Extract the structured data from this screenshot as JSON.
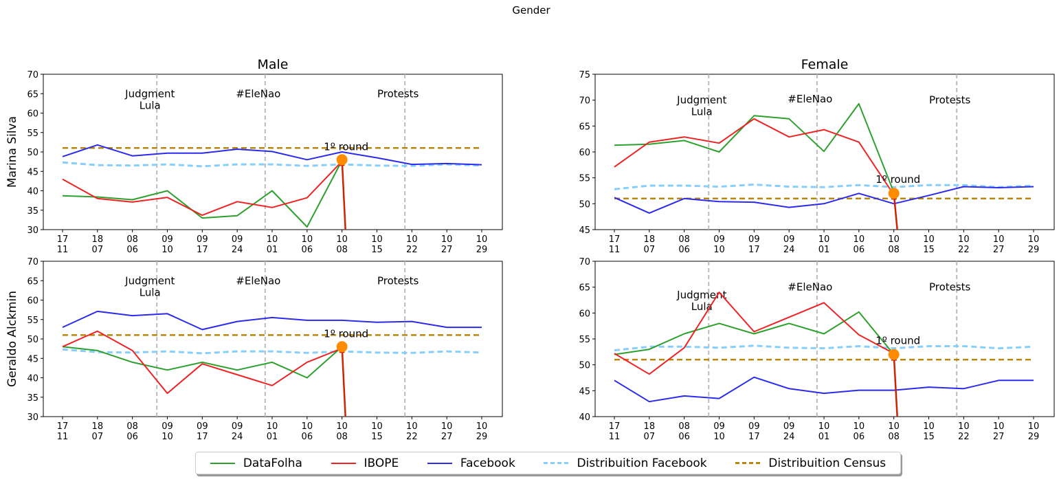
{
  "figure": {
    "suptitle": "Gender"
  },
  "colors": {
    "datafolha": "#2ca02c",
    "ibope": "#ee2222",
    "facebook": "#2a2aee",
    "dist_facebook": "#87cefa",
    "dist_census": "#b8860b",
    "marker": "#ff8c00",
    "arrow": "#cc2200",
    "vline": "#bbbbbb"
  },
  "legend": {
    "datafolha": "DataFolha",
    "ibope": "IBOPE",
    "facebook": "Facebook",
    "dist_facebook": "Distribuition Facebook",
    "dist_census": "Distribuition Census"
  },
  "chart_data": {
    "type": "line",
    "x_labels": [
      [
        "17",
        "11"
      ],
      [
        "18",
        "07"
      ],
      [
        "08",
        "06"
      ],
      [
        "09",
        "10"
      ],
      [
        "09",
        "17"
      ],
      [
        "09",
        "24"
      ],
      [
        "10",
        "01"
      ],
      [
        "10",
        "06"
      ],
      [
        "10",
        "08"
      ],
      [
        "10",
        "15"
      ],
      [
        "10",
        "22"
      ],
      [
        "10",
        "27"
      ],
      [
        "10",
        "29"
      ]
    ],
    "panels": [
      {
        "id": "marina-male",
        "col_title": "Male",
        "row_label": "Marina Silva",
        "ylim": [
          30,
          70
        ],
        "yticks": [
          30,
          35,
          40,
          45,
          50,
          55,
          60,
          65,
          70
        ],
        "events": [
          {
            "x": 2.7,
            "lines": [
              "Judgment",
              "Lula"
            ],
            "label_y": 65
          },
          {
            "x": 5.8,
            "lines": [
              "#EleNao"
            ],
            "label_y": 65
          },
          {
            "x": 9.8,
            "lines": [
              "Protests"
            ],
            "label_y": 65
          }
        ],
        "round": {
          "label": "1º round",
          "x": 8,
          "marker_y": 48,
          "label_y": 51.3
        },
        "series": {
          "datafolha": [
            [
              0,
              38.7
            ],
            [
              1,
              38.4
            ],
            [
              2,
              37.7
            ],
            [
              3,
              40
            ],
            [
              4,
              33
            ],
            [
              5,
              33.6
            ],
            [
              6,
              40
            ],
            [
              7,
              30.7
            ],
            [
              8,
              47.8
            ]
          ],
          "ibope": [
            [
              0,
              43
            ],
            [
              1,
              38
            ],
            [
              2,
              37.1
            ],
            [
              3,
              38.3
            ],
            [
              4,
              33.7
            ],
            [
              5,
              37.2
            ],
            [
              6,
              35.7
            ],
            [
              7,
              38.2
            ],
            [
              8,
              47.6
            ]
          ],
          "facebook": [
            [
              0,
              48.8
            ],
            [
              1,
              51.8
            ],
            [
              2,
              49
            ],
            [
              3,
              49.7
            ],
            [
              4,
              49.7
            ],
            [
              5,
              50.7
            ],
            [
              6,
              50.1
            ],
            [
              7,
              48
            ],
            [
              8,
              50
            ],
            [
              9,
              48.5
            ],
            [
              10,
              46.8
            ],
            [
              11,
              47
            ],
            [
              12,
              46.7
            ]
          ],
          "dist_facebook": [
            [
              0,
              47.3
            ],
            [
              1,
              46.6
            ],
            [
              2,
              46.5
            ],
            [
              3,
              46.8
            ],
            [
              4,
              46.3
            ],
            [
              5,
              46.8
            ],
            [
              6,
              46.8
            ],
            [
              7,
              46.4
            ],
            [
              8,
              46.8
            ],
            [
              9,
              46.5
            ],
            [
              10,
              46.4
            ],
            [
              11,
              46.8
            ],
            [
              12,
              46.5
            ]
          ],
          "dist_census": [
            [
              0,
              51
            ],
            [
              12,
              51
            ]
          ]
        }
      },
      {
        "id": "marina-female",
        "col_title": "Female",
        "row_label": "",
        "ylim": [
          45,
          75
        ],
        "yticks": [
          45,
          50,
          55,
          60,
          65,
          70,
          75
        ],
        "events": [
          {
            "x": 2.7,
            "lines": [
              "Judgment",
              "Lula"
            ],
            "label_y": 70
          },
          {
            "x": 5.8,
            "lines": [
              "#EleNao"
            ],
            "label_y": 70.2
          },
          {
            "x": 9.8,
            "lines": [
              "Protests"
            ],
            "label_y": 70
          }
        ],
        "round": {
          "label": "1º round",
          "x": 8,
          "marker_y": 52,
          "label_y": 54.7
        },
        "series": {
          "datafolha": [
            [
              0,
              61.3
            ],
            [
              1,
              61.5
            ],
            [
              2,
              62.2
            ],
            [
              3,
              60
            ],
            [
              4,
              67
            ],
            [
              5,
              66.4
            ],
            [
              6,
              60.1
            ],
            [
              7,
              69.3
            ],
            [
              8,
              52.2
            ]
          ],
          "ibope": [
            [
              0,
              57.1
            ],
            [
              1,
              61.9
            ],
            [
              2,
              62.9
            ],
            [
              3,
              61.7
            ],
            [
              4,
              66.4
            ],
            [
              5,
              62.9
            ],
            [
              6,
              64.3
            ],
            [
              7,
              61.9
            ],
            [
              8,
              51.7
            ]
          ],
          "facebook": [
            [
              0,
              51.2
            ],
            [
              1,
              48.2
            ],
            [
              2,
              51
            ],
            [
              3,
              50.4
            ],
            [
              4,
              50.3
            ],
            [
              5,
              49.3
            ],
            [
              6,
              50
            ],
            [
              7,
              52
            ],
            [
              8,
              50
            ],
            [
              9,
              51.6
            ],
            [
              10,
              53.3
            ],
            [
              11,
              53.1
            ],
            [
              12,
              53.3
            ]
          ],
          "dist_facebook": [
            [
              0,
              52.8
            ],
            [
              1,
              53.5
            ],
            [
              2,
              53.5
            ],
            [
              3,
              53.3
            ],
            [
              4,
              53.7
            ],
            [
              5,
              53.3
            ],
            [
              6,
              53.2
            ],
            [
              7,
              53.6
            ],
            [
              8,
              53.2
            ],
            [
              9,
              53.6
            ],
            [
              10,
              53.6
            ],
            [
              11,
              53.2
            ],
            [
              12,
              53.5
            ]
          ],
          "dist_census": [
            [
              0,
              51
            ],
            [
              12,
              51
            ]
          ]
        }
      },
      {
        "id": "alckmin-male",
        "col_title": "",
        "row_label": "Geraldo Alckmin",
        "ylim": [
          30,
          70
        ],
        "yticks": [
          30,
          35,
          40,
          45,
          50,
          55,
          60,
          65,
          70
        ],
        "events": [
          {
            "x": 2.7,
            "lines": [
              "Judgment",
              "Lula"
            ],
            "label_y": 65
          },
          {
            "x": 5.8,
            "lines": [
              "#EleNao"
            ],
            "label_y": 65
          },
          {
            "x": 9.8,
            "lines": [
              "Protests"
            ],
            "label_y": 65
          }
        ],
        "round": {
          "label": "1º round",
          "x": 8,
          "marker_y": 48,
          "label_y": 51.3
        },
        "series": {
          "datafolha": [
            [
              0,
              48
            ],
            [
              1,
              47
            ],
            [
              2,
              44
            ],
            [
              3,
              42
            ],
            [
              4,
              44
            ],
            [
              5,
              42
            ],
            [
              6,
              44
            ],
            [
              7,
              40
            ],
            [
              8,
              48
            ]
          ],
          "ibope": [
            [
              0,
              48
            ],
            [
              1,
              52
            ],
            [
              2,
              47
            ],
            [
              3,
              36
            ],
            [
              4,
              43.6
            ],
            [
              5,
              40.8
            ],
            [
              6,
              38
            ],
            [
              7,
              44
            ],
            [
              8,
              47.6
            ]
          ],
          "facebook": [
            [
              0,
              53
            ],
            [
              1,
              57.1
            ],
            [
              2,
              56
            ],
            [
              3,
              56.5
            ],
            [
              4,
              52.4
            ],
            [
              5,
              54.5
            ],
            [
              6,
              55.5
            ],
            [
              7,
              54.8
            ],
            [
              8,
              54.8
            ],
            [
              9,
              54.3
            ],
            [
              10,
              54.5
            ],
            [
              11,
              53
            ],
            [
              12,
              53
            ]
          ],
          "dist_facebook": [
            [
              0,
              47.3
            ],
            [
              1,
              46.6
            ],
            [
              2,
              46.5
            ],
            [
              3,
              46.8
            ],
            [
              4,
              46.3
            ],
            [
              5,
              46.8
            ],
            [
              6,
              46.8
            ],
            [
              7,
              46.4
            ],
            [
              8,
              46.8
            ],
            [
              9,
              46.5
            ],
            [
              10,
              46.4
            ],
            [
              11,
              46.8
            ],
            [
              12,
              46.5
            ]
          ],
          "dist_census": [
            [
              0,
              51
            ],
            [
              12,
              51
            ]
          ]
        }
      },
      {
        "id": "alckmin-female",
        "col_title": "",
        "row_label": "",
        "ylim": [
          40,
          70
        ],
        "yticks": [
          40,
          45,
          50,
          55,
          60,
          65,
          70
        ],
        "events": [
          {
            "x": 2.7,
            "lines": [
              "Judgment",
              "Lula"
            ],
            "label_y": 63.5
          },
          {
            "x": 5.8,
            "lines": [
              "#EleNao"
            ],
            "label_y": 65
          },
          {
            "x": 9.8,
            "lines": [
              "Protests"
            ],
            "label_y": 65
          }
        ],
        "round": {
          "label": "1º round",
          "x": 8,
          "marker_y": 52,
          "label_y": 54.7
        },
        "series": {
          "datafolha": [
            [
              0,
              52
            ],
            [
              1,
              53
            ],
            [
              2,
              56
            ],
            [
              3,
              58
            ],
            [
              4,
              56
            ],
            [
              5,
              58
            ],
            [
              6,
              56
            ],
            [
              7,
              60.2
            ],
            [
              8,
              52
            ]
          ],
          "ibope": [
            [
              0,
              52.2
            ],
            [
              1,
              48.2
            ],
            [
              2,
              53.3
            ],
            [
              3,
              64
            ],
            [
              4,
              56.4
            ],
            [
              5,
              59.2
            ],
            [
              6,
              62
            ],
            [
              7,
              55.8
            ],
            [
              8,
              52.2
            ]
          ],
          "facebook": [
            [
              0,
              47
            ],
            [
              1,
              42.9
            ],
            [
              2,
              44
            ],
            [
              3,
              43.5
            ],
            [
              4,
              47.6
            ],
            [
              5,
              45.4
            ],
            [
              6,
              44.5
            ],
            [
              7,
              45.1
            ],
            [
              8,
              45.1
            ],
            [
              9,
              45.7
            ],
            [
              10,
              45.4
            ],
            [
              11,
              47
            ],
            [
              12,
              47
            ]
          ],
          "dist_facebook": [
            [
              0,
              52.8
            ],
            [
              1,
              53.5
            ],
            [
              2,
              53.5
            ],
            [
              3,
              53.3
            ],
            [
              4,
              53.7
            ],
            [
              5,
              53.3
            ],
            [
              6,
              53.2
            ],
            [
              7,
              53.6
            ],
            [
              8,
              53.2
            ],
            [
              9,
              53.6
            ],
            [
              10,
              53.6
            ],
            [
              11,
              53.2
            ],
            [
              12,
              53.5
            ]
          ],
          "dist_census": [
            [
              0,
              51
            ],
            [
              12,
              51
            ]
          ]
        }
      }
    ]
  }
}
